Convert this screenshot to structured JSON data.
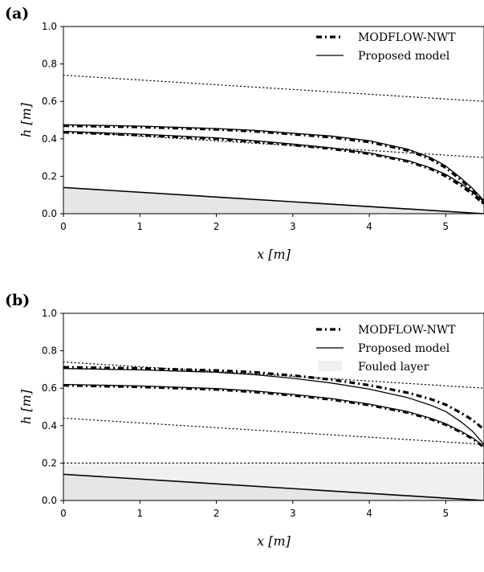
{
  "chart_data": [
    {
      "panel_label": "(a)",
      "type": "line",
      "xlabel": "x  [m]",
      "ylabel": "h  [m]",
      "xlim": [
        0,
        5.5
      ],
      "ylim": [
        0,
        1.0
      ],
      "xticks": [
        "0",
        "1",
        "2",
        "3",
        "4",
        "5"
      ],
      "yticks": [
        "0.0",
        "0.2",
        "0.4",
        "0.6",
        "0.8",
        "1.0"
      ],
      "legend": {
        "placement": "top-right",
        "entries": [
          "MODFLOW-NWT",
          "Proposed model"
        ]
      },
      "bed_polygon": {
        "x": [
          0,
          5.5
        ],
        "y": [
          0.14,
          0.0
        ],
        "fill": "#e6e6e6"
      },
      "series": [
        {
          "style": "dotted",
          "x": [
            0,
            5.5
          ],
          "y": [
            0.74,
            0.6
          ]
        },
        {
          "style": "dotted",
          "x": [
            0,
            5.5
          ],
          "y": [
            0.44,
            0.3
          ]
        },
        {
          "style": "solid",
          "x": [
            0,
            1,
            2,
            2.5,
            3,
            3.5,
            4,
            4.5,
            4.8,
            5.0,
            5.2,
            5.35,
            5.5
          ],
          "y": [
            0.475,
            0.468,
            0.455,
            0.445,
            0.43,
            0.415,
            0.39,
            0.345,
            0.3,
            0.255,
            0.19,
            0.135,
            0.07
          ]
        },
        {
          "style": "dashdot",
          "x": [
            0,
            1,
            2,
            2.5,
            3,
            3.5,
            4,
            4.5,
            4.8,
            5.0,
            5.2,
            5.35,
            5.5
          ],
          "y": [
            0.47,
            0.463,
            0.45,
            0.44,
            0.425,
            0.408,
            0.383,
            0.338,
            0.293,
            0.245,
            0.18,
            0.125,
            0.055
          ]
        },
        {
          "style": "solid",
          "x": [
            0,
            1,
            2,
            2.5,
            3,
            3.5,
            4,
            4.5,
            4.8,
            5.0,
            5.2,
            5.35,
            5.5
          ],
          "y": [
            0.44,
            0.425,
            0.405,
            0.39,
            0.372,
            0.352,
            0.325,
            0.285,
            0.245,
            0.21,
            0.16,
            0.115,
            0.065
          ]
        },
        {
          "style": "dashdot",
          "x": [
            0,
            1,
            2,
            2.5,
            3,
            3.5,
            4,
            4.5,
            4.8,
            5.0,
            5.2,
            5.35,
            5.5
          ],
          "y": [
            0.435,
            0.42,
            0.4,
            0.385,
            0.367,
            0.347,
            0.32,
            0.28,
            0.24,
            0.2,
            0.15,
            0.105,
            0.05
          ]
        }
      ]
    },
    {
      "panel_label": "(b)",
      "type": "line",
      "xlabel": "x  [m]",
      "ylabel": "h  [m]",
      "xlim": [
        0,
        5.5
      ],
      "ylim": [
        0,
        1.0
      ],
      "xticks": [
        "0",
        "1",
        "2",
        "3",
        "4",
        "5"
      ],
      "yticks": [
        "0.0",
        "0.2",
        "0.4",
        "0.6",
        "0.8",
        "1.0"
      ],
      "legend": {
        "placement": "top-right",
        "entries": [
          "MODFLOW-NWT",
          "Proposed model",
          "Fouled layer"
        ]
      },
      "fouled_layer": {
        "y_top": 0.2,
        "fill": "#f0f0f0"
      },
      "bed_polygon": {
        "x": [
          0,
          5.5
        ],
        "y": [
          0.14,
          0.0
        ],
        "fill": "#e6e6e6"
      },
      "series": [
        {
          "style": "dotted",
          "x": [
            0,
            5.5
          ],
          "y": [
            0.74,
            0.6
          ]
        },
        {
          "style": "dotted",
          "x": [
            0,
            5.5
          ],
          "y": [
            0.44,
            0.3
          ]
        },
        {
          "style": "dotted",
          "x": [
            0,
            5.5
          ],
          "y": [
            0.2,
            0.2
          ]
        },
        {
          "style": "solid",
          "x": [
            0,
            1,
            2,
            2.5,
            3,
            3.5,
            4,
            4.5,
            4.8,
            5.0,
            5.2,
            5.35,
            5.5
          ],
          "y": [
            0.705,
            0.698,
            0.685,
            0.672,
            0.653,
            0.628,
            0.595,
            0.55,
            0.51,
            0.475,
            0.42,
            0.37,
            0.3
          ]
        },
        {
          "style": "dashdot",
          "x": [
            0,
            1,
            2,
            2.5,
            3,
            3.5,
            4,
            4.5,
            4.8,
            5.0,
            5.2,
            5.35,
            5.5
          ],
          "y": [
            0.712,
            0.706,
            0.695,
            0.685,
            0.668,
            0.646,
            0.616,
            0.576,
            0.542,
            0.512,
            0.468,
            0.43,
            0.38
          ]
        },
        {
          "style": "solid",
          "x": [
            0,
            1,
            2,
            2.5,
            3,
            3.5,
            4,
            4.5,
            4.8,
            5.0,
            5.2,
            5.35,
            5.5
          ],
          "y": [
            0.62,
            0.612,
            0.598,
            0.585,
            0.567,
            0.545,
            0.515,
            0.475,
            0.44,
            0.41,
            0.37,
            0.335,
            0.29
          ]
        },
        {
          "style": "dashdot",
          "x": [
            0,
            1,
            2,
            2.5,
            3,
            3.5,
            4,
            4.5,
            4.8,
            5.0,
            5.2,
            5.35,
            5.5
          ],
          "y": [
            0.615,
            0.607,
            0.593,
            0.58,
            0.562,
            0.54,
            0.51,
            0.47,
            0.435,
            0.405,
            0.365,
            0.33,
            0.285
          ]
        }
      ]
    }
  ]
}
